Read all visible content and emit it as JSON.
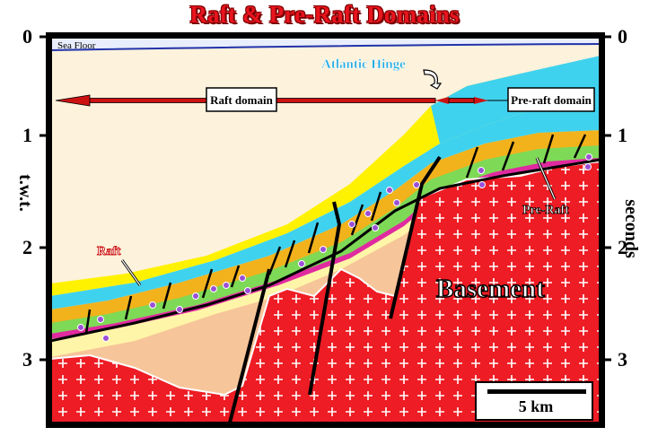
{
  "title": "Raft & Pre-Raft Domains",
  "left_axis": {
    "label": "t.w.t.",
    "ticks": [
      "0",
      "1",
      "2",
      "3"
    ]
  },
  "right_axis": {
    "label": "seconds",
    "ticks": [
      "0",
      "1",
      "2",
      "3"
    ]
  },
  "labels": {
    "sea_floor": "Sea Floor",
    "atlantic_hinge": "Atlantic Hinge",
    "raft_domain": "Raft domain",
    "pre_raft_domain": "Pre-raft domain",
    "raft": "Raft",
    "pre_raft": "Pre-Raft",
    "basement": "Basement"
  },
  "scale_bar": {
    "label": "5 km"
  },
  "colors": {
    "title": "#e8141e",
    "basement": "#ee1c24",
    "water": "#fdf2dc",
    "sea_floor_line": "#2233aa",
    "yellow_layer": "#fff200",
    "cyan_layer": "#3fd2ee",
    "orange_layer": "#f2b21c",
    "green_layer": "#7ed957",
    "magenta_layer": "#e02aa0",
    "pale_yellow_layer": "#fff5a8",
    "peach_fill": "#f7c59a",
    "hinge_label": "#1aa8e6",
    "arrow": "#cc1111",
    "dots": "#9b4fd6"
  }
}
